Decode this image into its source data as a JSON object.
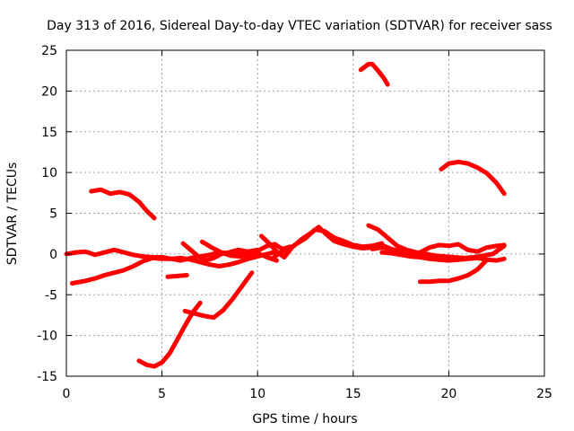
{
  "chart_data": {
    "type": "line",
    "title": "Day 313 of 2016, Sidereal Day-to-day VTEC variation (SDTVAR) for receiver sass",
    "xlabel": "GPS time / hours",
    "ylabel": "SDTVAR / TECUs",
    "xlim": [
      0,
      25
    ],
    "ylim": [
      -15,
      25
    ],
    "xticks": [
      0,
      5,
      10,
      15,
      20,
      25
    ],
    "yticks": [
      -15,
      -10,
      -5,
      0,
      5,
      10,
      15,
      20,
      25
    ],
    "grid": true,
    "color": "#ff0000",
    "series": [
      {
        "name": "arc-1",
        "x": [
          15.4,
          15.8,
          16.0,
          16.3,
          16.6,
          16.8
        ],
        "y": [
          22.6,
          23.3,
          23.3,
          22.5,
          21.6,
          20.8
        ]
      },
      {
        "name": "arc-2",
        "x": [
          19.6,
          20.0,
          20.5,
          21.0,
          21.5,
          22.0,
          22.5,
          22.9
        ],
        "y": [
          10.4,
          11.1,
          11.3,
          11.1,
          10.6,
          9.9,
          8.7,
          7.4
        ]
      },
      {
        "name": "arc-3",
        "x": [
          1.3,
          1.8,
          2.3,
          2.8,
          3.3,
          3.8,
          4.2,
          4.6
        ],
        "y": [
          7.7,
          7.9,
          7.4,
          7.6,
          7.3,
          6.4,
          5.3,
          4.4
        ]
      },
      {
        "name": "arc-4",
        "x": [
          0.0,
          0.5,
          1.0,
          1.5,
          2.0,
          2.5,
          3.0,
          3.5,
          4.0,
          4.5,
          5.0,
          5.5,
          6.0,
          6.5,
          7.0,
          7.5,
          8.0,
          8.5,
          9.0,
          9.5,
          10.0
        ],
        "y": [
          0.0,
          0.2,
          0.3,
          -0.1,
          0.2,
          0.5,
          0.2,
          -0.1,
          -0.3,
          -0.4,
          -0.4,
          -0.6,
          -0.8,
          -0.5,
          -0.3,
          -0.1,
          0.2,
          0.1,
          0.0,
          0.3,
          0.5
        ]
      },
      {
        "name": "arc-5",
        "x": [
          0.3,
          1.0,
          1.5,
          2.0,
          2.5,
          3.0,
          3.5,
          4.0,
          4.5,
          5.0,
          5.5,
          6.0,
          6.5,
          7.0,
          7.5,
          8.0,
          8.5,
          9.0,
          9.5,
          10.0,
          10.5,
          11.0
        ],
        "y": [
          -3.6,
          -3.3,
          -3.0,
          -2.6,
          -2.3,
          -2.0,
          -1.5,
          -0.9,
          -0.5,
          -0.6,
          -0.6,
          -0.5,
          -0.7,
          -1.0,
          -1.3,
          -1.5,
          -1.3,
          -1.0,
          -0.6,
          -0.3,
          0.0,
          0.3
        ]
      },
      {
        "name": "arc-6",
        "x": [
          3.8,
          4.2,
          4.6,
          5.0,
          5.4,
          5.8,
          6.2,
          6.6,
          7.0
        ],
        "y": [
          -13.1,
          -13.6,
          -13.8,
          -13.3,
          -12.2,
          -10.5,
          -8.8,
          -7.2,
          -6.0
        ]
      },
      {
        "name": "arc-7",
        "x": [
          6.2,
          6.7,
          7.2,
          7.7,
          8.2,
          8.7,
          9.2,
          9.7
        ],
        "y": [
          -7.0,
          -7.3,
          -7.6,
          -7.8,
          -6.9,
          -5.5,
          -3.9,
          -2.3
        ]
      },
      {
        "name": "arc-8",
        "x": [
          5.3,
          5.8,
          6.3
        ],
        "y": [
          -2.8,
          -2.7,
          -2.6
        ]
      },
      {
        "name": "arc-9",
        "x": [
          6.1,
          6.5,
          6.9,
          7.3,
          7.7,
          8.1,
          8.5,
          9.0,
          9.5,
          10.0,
          10.5,
          11.0
        ],
        "y": [
          1.3,
          0.5,
          -0.3,
          -0.8,
          -0.5,
          0.0,
          0.2,
          0.5,
          0.3,
          0.1,
          -0.4,
          -0.8
        ]
      },
      {
        "name": "arc-10",
        "x": [
          7.1,
          7.6,
          8.1,
          8.6,
          9.1,
          9.6,
          10.1,
          10.5,
          10.9,
          11.3,
          11.7
        ],
        "y": [
          1.5,
          0.8,
          0.2,
          -0.2,
          -0.3,
          0.0,
          0.5,
          1.0,
          1.2,
          0.6,
          0.9
        ]
      },
      {
        "name": "arc-11",
        "x": [
          10.2,
          10.6,
          11.0,
          11.4,
          11.8,
          12.3,
          12.8,
          13.2,
          13.6,
          14.0,
          14.5,
          15.0,
          15.5,
          16.0,
          16.5,
          17.0
        ],
        "y": [
          2.2,
          1.3,
          0.3,
          -0.4,
          0.8,
          1.8,
          2.6,
          3.3,
          2.4,
          1.6,
          1.2,
          0.9,
          0.7,
          0.8,
          1.1,
          0.6
        ]
      },
      {
        "name": "arc-12",
        "x": [
          10.8,
          11.2,
          11.6,
          12.0,
          12.5,
          13.0,
          13.5,
          14.0,
          14.5,
          15.0,
          15.5,
          16.0,
          16.5
        ],
        "y": [
          -0.5,
          0.2,
          0.5,
          1.2,
          1.9,
          3.0,
          2.8,
          2.0,
          1.6,
          1.1,
          0.9,
          1.0,
          1.3
        ]
      },
      {
        "name": "arc-13",
        "x": [
          15.8,
          16.3,
          16.8,
          17.3,
          17.8,
          18.3,
          18.8,
          19.3,
          19.8,
          20.3,
          20.8,
          21.3,
          21.8,
          22.3,
          22.9
        ],
        "y": [
          3.5,
          3.0,
          2.0,
          1.0,
          0.5,
          0.2,
          0.0,
          -0.2,
          -0.3,
          -0.4,
          -0.5,
          -0.4,
          -0.2,
          0.0,
          1.0
        ]
      },
      {
        "name": "arc-14",
        "x": [
          16.0,
          16.5,
          17.0,
          17.5,
          18.0,
          18.5,
          19.0,
          19.5,
          20.0,
          20.5,
          21.0,
          21.5,
          22.0,
          22.5,
          22.9
        ],
        "y": [
          0.6,
          0.8,
          0.6,
          0.3,
          0.1,
          0.2,
          0.8,
          1.1,
          1.0,
          1.2,
          0.5,
          0.3,
          0.8,
          1.0,
          1.1
        ]
      },
      {
        "name": "arc-15",
        "x": [
          16.5,
          17.0,
          17.5,
          18.0,
          18.5,
          19.0,
          19.5,
          20.0,
          20.5,
          21.0,
          21.5,
          22.0,
          22.5,
          22.9
        ],
        "y": [
          0.2,
          0.1,
          -0.1,
          -0.3,
          -0.4,
          -0.6,
          -0.7,
          -0.8,
          -0.7,
          -0.6,
          -0.5,
          -0.7,
          -0.8,
          -0.6
        ]
      },
      {
        "name": "arc-16",
        "x": [
          18.5,
          19.0,
          19.5,
          20.0,
          20.5,
          21.0,
          21.5,
          22.0
        ],
        "y": [
          -3.4,
          -3.4,
          -3.3,
          -3.3,
          -3.0,
          -2.6,
          -1.9,
          -0.7
        ]
      }
    ]
  }
}
